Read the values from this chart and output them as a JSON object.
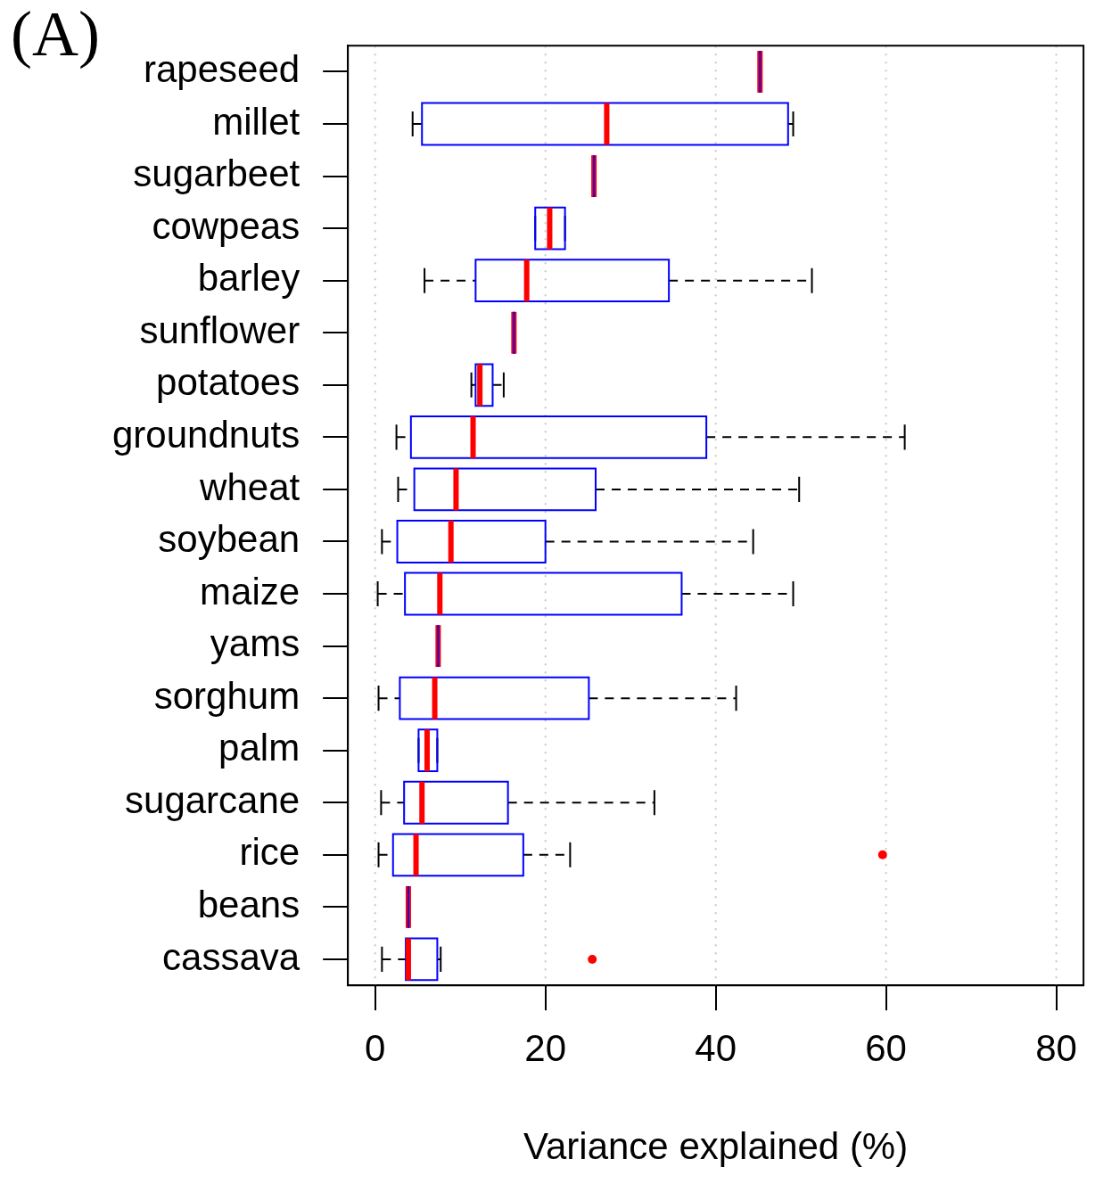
{
  "chart_data": {
    "type": "box",
    "orientation": "horizontal",
    "title": "(A)",
    "xlabel": "Variance explained (%)",
    "categories": [
      "rapeseed",
      "millet",
      "sugarbeet",
      "cowpeas",
      "barley",
      "sunflower",
      "potatoes",
      "groundnuts",
      "wheat",
      "soybean",
      "maize",
      "yams",
      "sorghum",
      "palm",
      "sugarcane",
      "rice",
      "beans",
      "cassava"
    ],
    "series": [
      {
        "color": "#0000ff",
        "boxes": [
          {
            "low": 45.2,
            "q1": 45.2,
            "median": 45.2,
            "q3": 45.2,
            "high": 45.2
          },
          {
            "low": 4.4,
            "q1": 5.5,
            "median": 27.2,
            "q3": 48.5,
            "high": 49.1
          },
          {
            "low": 25.7,
            "q1": 25.7,
            "median": 25.7,
            "q3": 25.7,
            "high": 25.7
          },
          {
            "low": 18.8,
            "q1": 18.8,
            "median": 20.5,
            "q3": 22.3,
            "high": 22.3
          },
          {
            "low": 5.8,
            "q1": 11.8,
            "median": 17.8,
            "q3": 34.5,
            "high": 51.3
          },
          {
            "low": 16.3,
            "q1": 16.3,
            "median": 16.3,
            "q3": 16.3,
            "high": 16.3
          },
          {
            "low": 11.3,
            "q1": 11.8,
            "median": 12.3,
            "q3": 13.8,
            "high": 15.1
          },
          {
            "low": 2.5,
            "q1": 4.2,
            "median": 11.5,
            "q3": 38.9,
            "high": 62.2
          },
          {
            "low": 2.7,
            "q1": 4.6,
            "median": 9.5,
            "q3": 25.9,
            "high": 49.8
          },
          {
            "low": 0.8,
            "q1": 2.6,
            "median": 8.9,
            "q3": 20.0,
            "high": 44.4
          },
          {
            "low": 0.3,
            "q1": 3.5,
            "median": 7.6,
            "q3": 36.0,
            "high": 49.1
          },
          {
            "low": 7.4,
            "q1": 7.4,
            "median": 7.4,
            "q3": 7.4,
            "high": 7.4
          },
          {
            "low": 0.4,
            "q1": 2.9,
            "median": 7.0,
            "q3": 25.1,
            "high": 42.4
          },
          {
            "low": 5.1,
            "q1": 5.1,
            "median": 6.1,
            "q3": 7.3,
            "high": 7.3
          },
          {
            "low": 0.7,
            "q1": 3.4,
            "median": 5.5,
            "q3": 15.6,
            "high": 32.8
          },
          {
            "low": 0.4,
            "q1": 2.1,
            "median": 4.8,
            "q3": 17.4,
            "high": 22.9,
            "outliers": [
              59.6
            ]
          },
          {
            "low": 3.9,
            "q1": 3.9,
            "median": 3.9,
            "q3": 3.9,
            "high": 3.9
          },
          {
            "low": 0.8,
            "q1": 3.6,
            "median": 3.9,
            "q3": 7.3,
            "high": 7.7,
            "outliers": [
              25.5
            ]
          }
        ]
      }
    ],
    "xlim": [
      -3.2,
      83.2
    ],
    "xticks": [
      0,
      20,
      40,
      60,
      80
    ],
    "grid": "x"
  }
}
